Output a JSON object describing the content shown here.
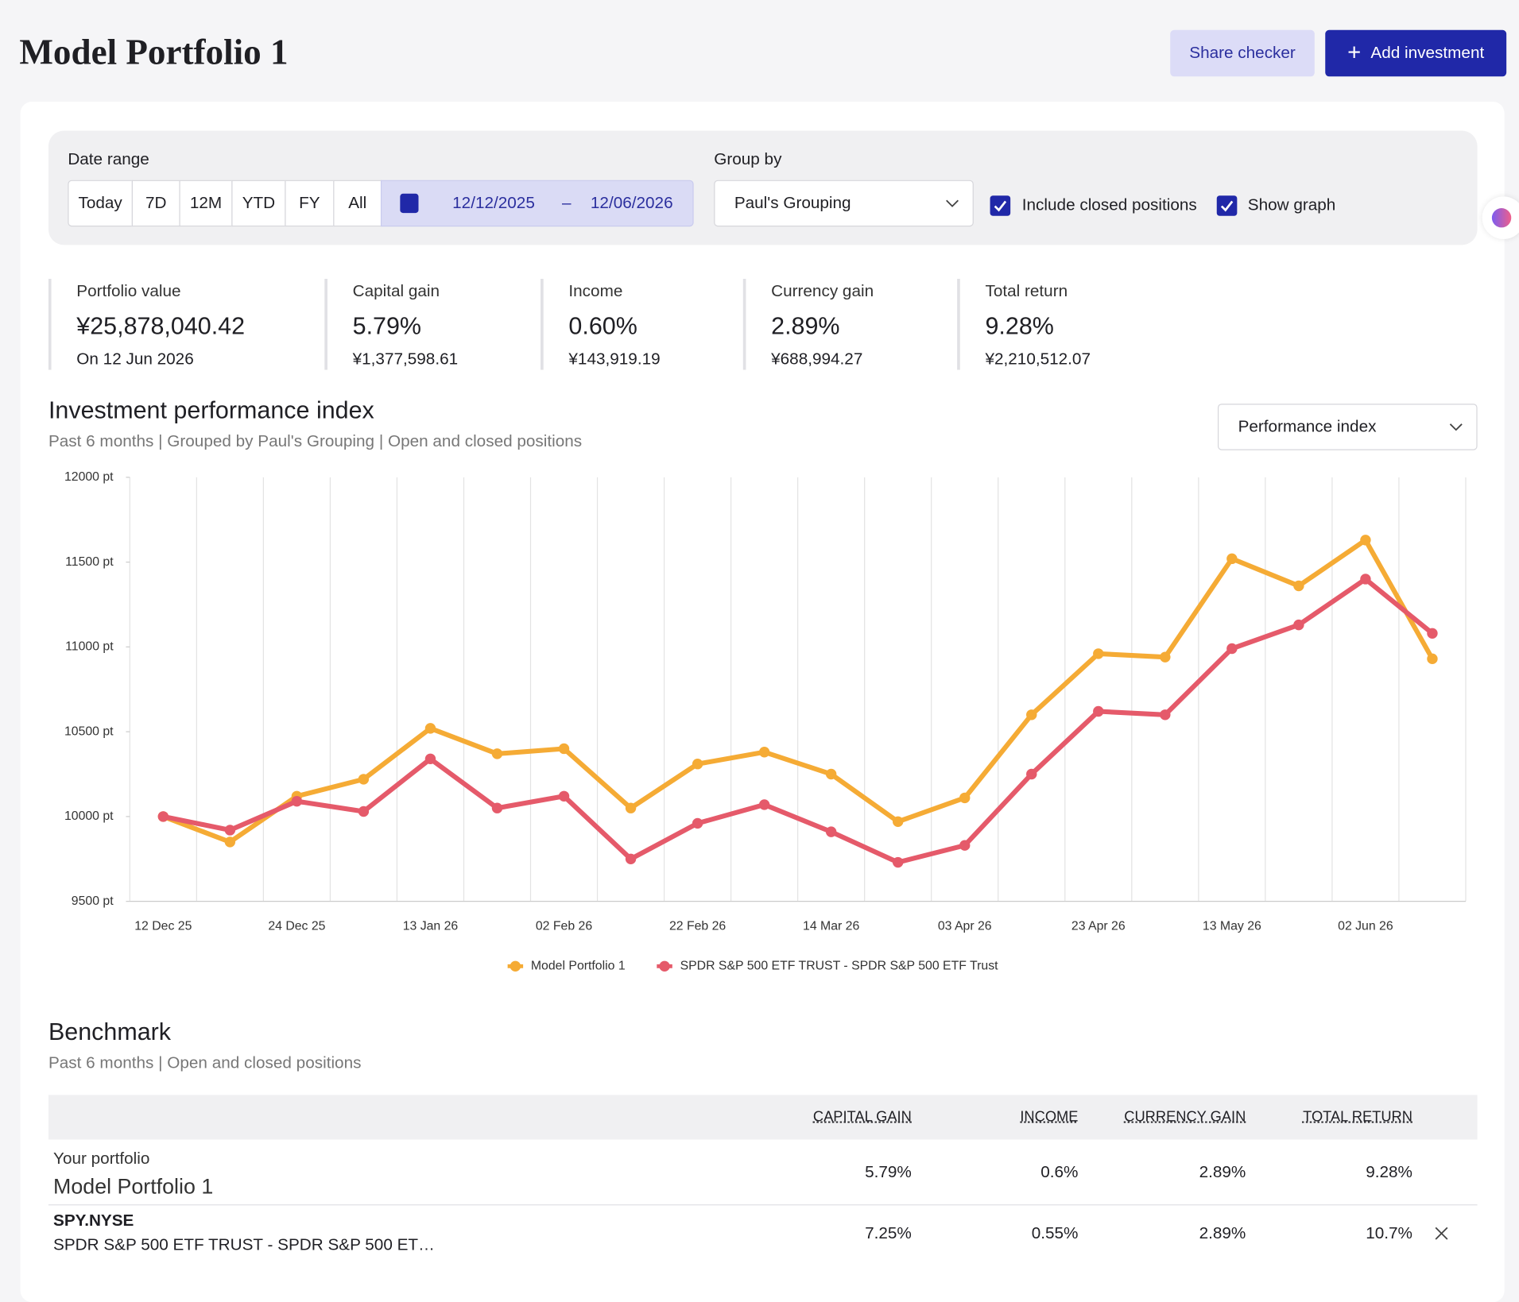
{
  "header": {
    "title": "Model Portfolio 1",
    "share_button": "Share checker",
    "add_button": "Add investment"
  },
  "filters": {
    "date_range_label": "Date range",
    "presets": [
      "Today",
      "7D",
      "12M",
      "YTD",
      "FY",
      "All"
    ],
    "start_date": "12/12/2025",
    "date_separator": "–",
    "end_date": "12/06/2026",
    "group_by_label": "Group by",
    "group_by": "Paul's Grouping",
    "checkboxes": [
      "Include closed positions",
      "Show graph"
    ]
  },
  "summary": [
    {
      "label": "Portfolio value",
      "value": "¥25,878,040.42",
      "sub": "On 12 Jun 2026"
    },
    {
      "label": "Capital gain",
      "value": "5.79%",
      "sub": "¥1,377,598.61"
    },
    {
      "label": "Income",
      "value": "0.60%",
      "sub": "¥143,919.19"
    },
    {
      "label": "Currency gain",
      "value": "2.89%",
      "sub": "¥688,994.27"
    },
    {
      "label": "Total return",
      "value": "9.28%",
      "sub": "¥2,210,512.07"
    }
  ],
  "chart_controls": {
    "metric": "Performance index"
  },
  "chart_data": {
    "type": "line",
    "title": "Investment performance index",
    "subtitle": "Past 6 months | Grouped by Paul's Grouping | Open and closed positions",
    "categories": [
      "12 Dec 25",
      null,
      "24 Dec 25",
      null,
      "13 Jan 26",
      null,
      "02 Feb 26",
      null,
      "22 Feb 26",
      null,
      "14 Mar 26",
      null,
      "03 Apr 26",
      null,
      "23 Apr 26",
      null,
      "13 May 26",
      null,
      "02 Jun 26",
      null
    ],
    "series": [
      {
        "name": "Model Portfolio 1",
        "color": "#f5ab35",
        "values": [
          10000,
          9850,
          10120,
          10220,
          10520,
          10370,
          10400,
          10050,
          10310,
          10380,
          10250,
          9970,
          10110,
          10600,
          10960,
          10940,
          11520,
          11360,
          11630,
          10930
        ]
      },
      {
        "name": "SPDR S&P 500 ETF TRUST - SPDR S&P 500 ETF Trust",
        "color": "#e55a6a",
        "values": [
          10000,
          9920,
          10090,
          10030,
          10340,
          10050,
          10120,
          9750,
          9960,
          10070,
          9910,
          9730,
          9830,
          10250,
          10620,
          10600,
          10990,
          11130,
          11400,
          11080
        ]
      }
    ],
    "ylim": [
      9500,
      12000
    ],
    "yticks": [
      {
        "value": 9500,
        "label": "9500 pt"
      },
      {
        "value": 10000,
        "label": "10000 pt"
      },
      {
        "value": 10500,
        "label": "10500 pt"
      },
      {
        "value": 11000,
        "label": "11000 pt"
      },
      {
        "value": 11500,
        "label": "11500 pt"
      },
      {
        "value": 12000,
        "label": "12000 pt"
      }
    ],
    "xgrid": true,
    "legend": "bottom"
  },
  "benchmark": {
    "title": "Benchmark",
    "subtitle": "Past 6 months | Open and closed positions",
    "columns": [
      "CAPITAL GAIN",
      "INCOME",
      "CURRENCY GAIN",
      "TOTAL RETURN"
    ],
    "rows": [
      {
        "top": "Your portfolio",
        "name": "Model Portfolio 1",
        "cells": [
          "5.79%",
          "0.6%",
          "2.89%",
          "9.28%"
        ]
      },
      {
        "top": "SPY.NYSE",
        "name": "SPDR S&P 500 ETF TRUST - SPDR S&P 500 ET…",
        "cells": [
          "7.25%",
          "0.55%",
          "2.89%",
          "10.7%"
        ]
      }
    ]
  }
}
